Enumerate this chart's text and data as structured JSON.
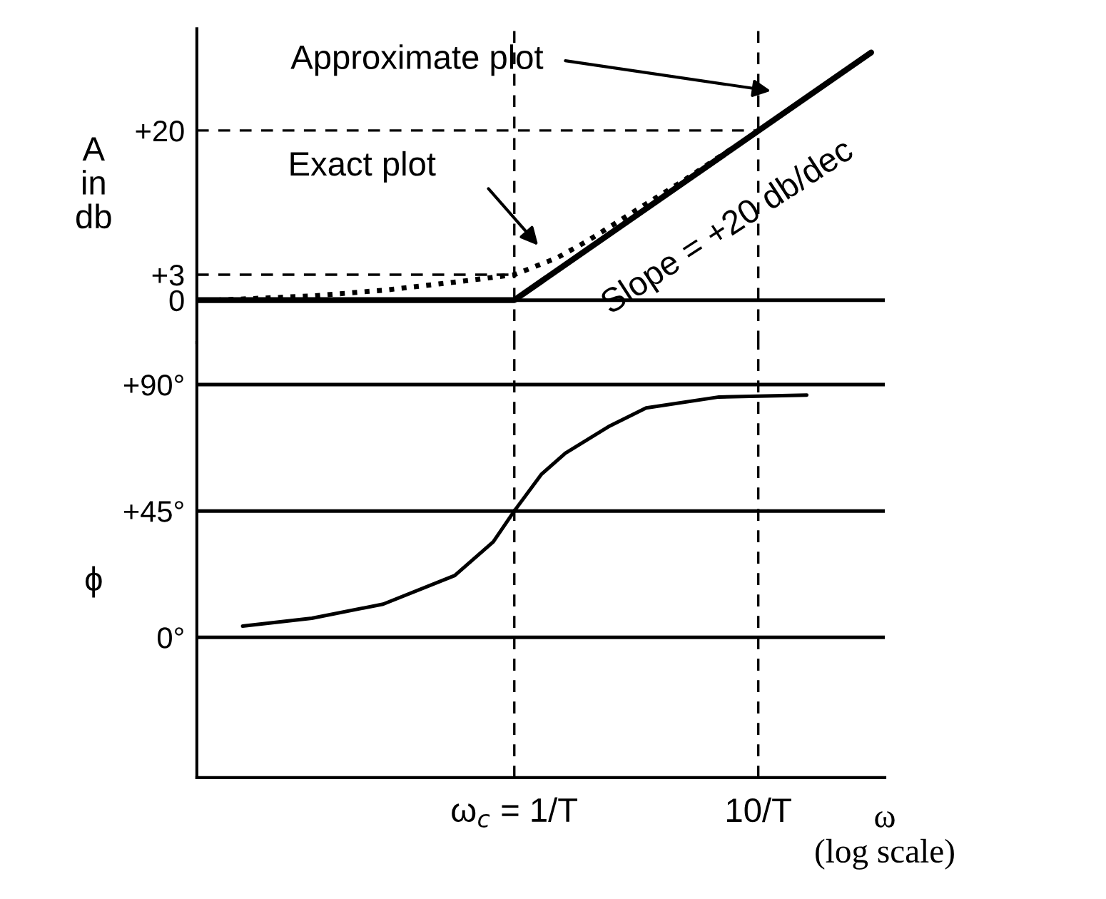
{
  "chart_data": [
    {
      "type": "line",
      "ylabel": "A\nin\ndb",
      "log": "x",
      "xlim": [
        0.05,
        33
      ],
      "ylim": [
        -5,
        32
      ],
      "yticks": [
        {
          "value": 0,
          "label": "0"
        },
        {
          "value": 3,
          "label": "+3"
        },
        {
          "value": 20,
          "label": "+20"
        }
      ],
      "tick_labels": "y",
      "series": [
        {
          "x": [
            0.05,
            1,
            29
          ],
          "values": [
            0,
            0,
            29.2
          ],
          "color": "#000000",
          "line_style": "solid"
        },
        {
          "x": [
            0.06,
            0.15,
            0.3,
            0.6,
            1,
            1.5,
            2,
            3,
            5,
            8
          ],
          "values": [
            0,
            0.5,
            1.2,
            2.2,
            3,
            5,
            7,
            10.2,
            14.2,
            18.1
          ],
          "color": "#000000",
          "line_style": "dotted"
        },
        {
          "x": [
            0.05,
            1
          ],
          "values": [
            3,
            3
          ],
          "color": "#000000",
          "line_style": "dashed"
        },
        {
          "x": [
            0.05,
            10
          ],
          "values": [
            20,
            20
          ],
          "color": "#000000",
          "line_style": "dashed"
        }
      ],
      "ref_lines": [
        {
          "axis": "y",
          "value": 0,
          "line_style": "solid"
        },
        {
          "axis": "x",
          "value": 1,
          "line_style": "dashed"
        },
        {
          "axis": "x",
          "value": 10,
          "line_style": "dashed"
        }
      ],
      "annotations": [
        "Approximate plot",
        "Exact plot",
        {
          "text": "Slope = +20 db/dec",
          "x": 6,
          "y": 15.5
        }
      ]
    },
    {
      "type": "line",
      "ylabel": "ϕ",
      "xlabel": "ω\n(log scale)",
      "log": "x",
      "xlim": [
        0.05,
        33
      ],
      "xticks": [
        {
          "value": 1,
          "label": "ω$_{c}$ = 1/T"
        },
        {
          "value": 10,
          "label": "10/T"
        }
      ],
      "ylim": [
        -50,
        105
      ],
      "yticks": [
        {
          "value": 0,
          "label": "0°"
        },
        {
          "value": 45,
          "label": "+45°"
        },
        {
          "value": 90,
          "label": "+90°"
        }
      ],
      "series": [
        {
          "x": [
            0.077,
            0.148,
            0.29,
            0.57,
            0.82,
            1,
            1.29,
            1.62,
            2.43,
            3.47,
            6.9,
            15.8
          ],
          "values": [
            4,
            6.8,
            11.8,
            22,
            34,
            45,
            58,
            65.6,
            75,
            81.7,
            85.6,
            86.3
          ],
          "color": "#000000",
          "line_style": "solid"
        }
      ],
      "ref_lines": [
        {
          "axis": "y",
          "value": 0,
          "line_style": "solid"
        },
        {
          "axis": "y",
          "value": 45,
          "line_style": "solid"
        },
        {
          "axis": "y",
          "value": 90,
          "line_style": "solid"
        },
        {
          "axis": "x",
          "value": 1,
          "line_style": "dashed"
        },
        {
          "axis": "x",
          "value": 10,
          "line_style": "dashed"
        }
      ]
    }
  ]
}
